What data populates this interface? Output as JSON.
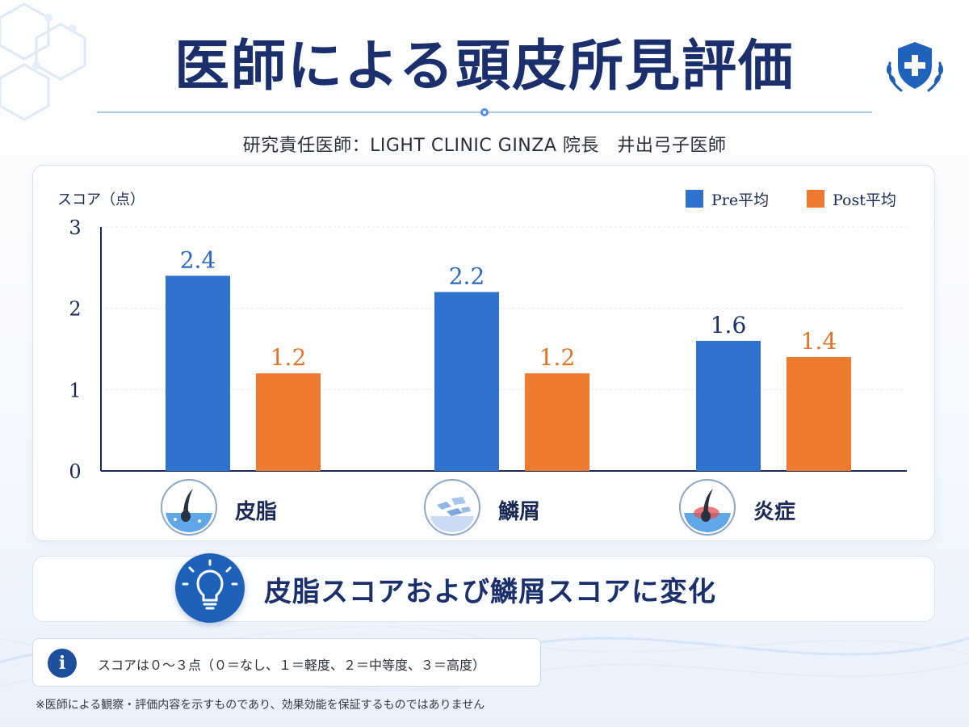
{
  "header": {
    "title": "医師による頭皮所見評価",
    "subtitle": "研究責任医師：LIGHT CLINIC GINZA 院長　井出弓子医師"
  },
  "colors": {
    "pre": "#2f73cf",
    "post": "#ee7a30",
    "pre_label": "#2a67be",
    "post_label": "#e2722a",
    "navy": "#1a2f6b"
  },
  "icons": {
    "shield": "medical-shield-icon",
    "sebum": "hair-follicle-sebum-icon",
    "scale": "scalp-flakes-icon",
    "inflammation": "inflamed-follicle-icon",
    "bulb": "lightbulb-icon",
    "info": "info-icon"
  },
  "chart_data": {
    "type": "bar",
    "title": "",
    "ylabel": "スコア（点）",
    "xlabel": "",
    "ylim": [
      0,
      3
    ],
    "yticks": [
      "0",
      "1",
      "2",
      "3"
    ],
    "grid": true,
    "legend_position": "top-right",
    "categories": [
      "皮脂",
      "鱗屑",
      "炎症"
    ],
    "series": [
      {
        "name": "Pre平均",
        "values": [
          2.4,
          2.2,
          1.6
        ],
        "labels": [
          "2.4",
          "2.2",
          "1.6"
        ]
      },
      {
        "name": "Post平均",
        "values": [
          1.2,
          1.2,
          1.4
        ],
        "labels": [
          "1.2",
          "1.2",
          "1.4"
        ]
      }
    ]
  },
  "summary": {
    "text": "皮脂スコアおよび鱗屑スコアに変化"
  },
  "note": {
    "info_glyph": "i",
    "text": "スコアは０～３点（０＝なし、１＝軽度、２＝中等度、３＝高度）"
  },
  "footnote": "※医師による観察・評価内容を示すものであり、効果効能を保証するものではありません"
}
